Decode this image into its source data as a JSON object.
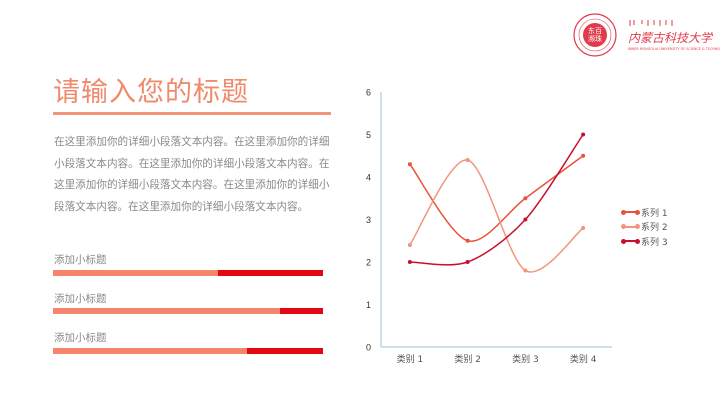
{
  "logo": {
    "seal_text": "Baotou Teachers College Seal",
    "seal_inner": "东百 濒珠",
    "name_cn": "内蒙古科技大学",
    "name_en": "INNER MONGOLIA UNIVERSITY OF SCIENCE & TECHNOLOGY",
    "color": "#e23a4b"
  },
  "header": {
    "title": "请输入您的标题"
  },
  "body": {
    "paragraph": "在这里添加你的详细小段落文本内容。在这里添加你的详细小段落文本内容。在这里添加你的详细小段落文本内容。在这里添加你的详细小段落文本内容。在这里添加你的详细小段落文本内容。在这里添加你的详细小段落文本内容。"
  },
  "progress": [
    {
      "label": "添加小标题",
      "percent": 61
    },
    {
      "label": "添加小标题",
      "percent": 84
    },
    {
      "label": "添加小标题",
      "percent": 72
    }
  ],
  "colors": {
    "accent": "#f08a6c",
    "bar_light": "#f4846c",
    "bar_dark": "#e30613",
    "series1": "#e8533a",
    "series2": "#f2947e",
    "series3": "#c8102e"
  },
  "chart_data": {
    "type": "line",
    "smooth": true,
    "categories": [
      "类别 1",
      "类别 2",
      "类别 3",
      "类别 4"
    ],
    "series": [
      {
        "name": "系列 1",
        "values": [
          4.3,
          2.5,
          3.5,
          4.5
        ],
        "color": "#e8533a"
      },
      {
        "name": "系列 2",
        "values": [
          2.4,
          4.4,
          1.8,
          2.8
        ],
        "color": "#f2947e"
      },
      {
        "name": "系列 3",
        "values": [
          2,
          2,
          3,
          5
        ],
        "color": "#c8102e"
      }
    ],
    "ylim": [
      0,
      6
    ],
    "yticks": [
      "0",
      "1",
      "2",
      "3",
      "4",
      "5",
      "6"
    ],
    "title": "",
    "xlabel": "",
    "ylabel": "",
    "grid": false,
    "legend_position": "right"
  }
}
